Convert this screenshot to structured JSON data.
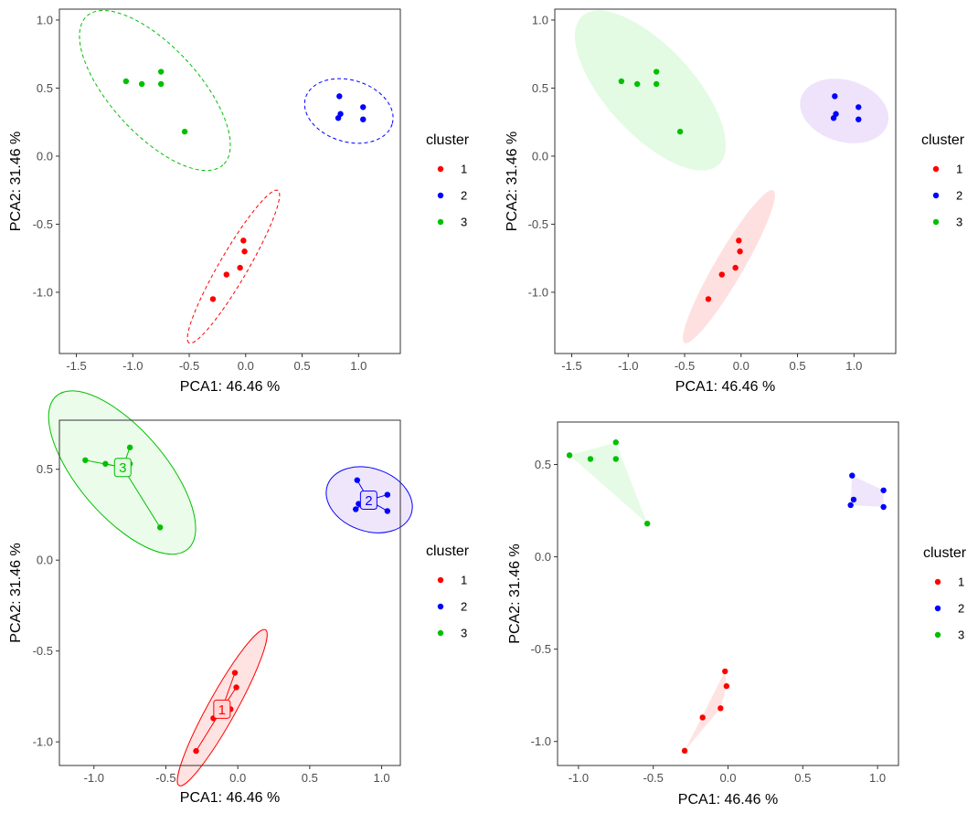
{
  "chart_data": [
    {
      "type": "scatter",
      "style": "dashed-ellipse",
      "xlabel": "PCA1: 46.46 %",
      "ylabel": "PCA2: 31.46 %",
      "xlim": [
        -1.65,
        1.37
      ],
      "ylim": [
        -1.45,
        1.08
      ],
      "xticks": [
        -1.5,
        -1.0,
        -0.5,
        0.0,
        0.5,
        1.0
      ],
      "xtick_labels": [
        "-1.5",
        "-1.0",
        "-0.5",
        "0.0",
        "0.5",
        "1.0"
      ],
      "yticks": [
        -1.0,
        -0.5,
        0.0,
        0.5,
        1.0
      ],
      "ytick_labels": [
        "-1.0",
        "-0.5",
        "0.0",
        "0.5",
        "1.0"
      ],
      "legend_title": "cluster",
      "series": [
        {
          "name": "1",
          "color": "#ff0000",
          "points": [
            [
              -0.02,
              -0.62
            ],
            [
              -0.01,
              -0.7
            ],
            [
              -0.05,
              -0.82
            ],
            [
              -0.17,
              -0.87
            ],
            [
              -0.29,
              -1.05
            ]
          ]
        },
        {
          "name": "2",
          "color": "#0000ff",
          "points": [
            [
              0.83,
              0.44
            ],
            [
              1.04,
              0.36
            ],
            [
              0.84,
              0.31
            ],
            [
              0.82,
              0.28
            ],
            [
              1.04,
              0.27
            ]
          ]
        },
        {
          "name": "3",
          "color": "#00c000",
          "points": [
            [
              -0.75,
              0.62
            ],
            [
              -1.06,
              0.55
            ],
            [
              -0.92,
              0.53
            ],
            [
              -0.75,
              0.53
            ],
            [
              -0.54,
              0.18
            ]
          ]
        }
      ]
    },
    {
      "type": "scatter",
      "style": "filled-ellipse",
      "xlabel": "PCA1: 46.46 %",
      "ylabel": "PCA2: 31.46 %",
      "xlim": [
        -1.65,
        1.37
      ],
      "ylim": [
        -1.45,
        1.08
      ],
      "xticks": [
        -1.5,
        -1.0,
        -0.5,
        0.0,
        0.5,
        1.0
      ],
      "xtick_labels": [
        "-1.5",
        "-1.0",
        "-0.5",
        "0.0",
        "0.5",
        "1.0"
      ],
      "yticks": [
        -1.0,
        -0.5,
        0.0,
        0.5,
        1.0
      ],
      "ytick_labels": [
        "-1.0",
        "-0.5",
        "0.0",
        "0.5",
        "1.0"
      ],
      "legend_title": "cluster",
      "series": [
        {
          "name": "1",
          "color": "#ff0000",
          "fill": "#ffe0e0",
          "points": [
            [
              -0.02,
              -0.62
            ],
            [
              -0.01,
              -0.7
            ],
            [
              -0.05,
              -0.82
            ],
            [
              -0.17,
              -0.87
            ],
            [
              -0.29,
              -1.05
            ]
          ]
        },
        {
          "name": "2",
          "color": "#0000ff",
          "fill": "#eee3fb",
          "points": [
            [
              0.83,
              0.44
            ],
            [
              1.04,
              0.36
            ],
            [
              0.84,
              0.31
            ],
            [
              0.82,
              0.28
            ],
            [
              1.04,
              0.27
            ]
          ]
        },
        {
          "name": "3",
          "color": "#00c000",
          "fill": "#e3fbe3",
          "points": [
            [
              -0.75,
              0.62
            ],
            [
              -1.06,
              0.55
            ],
            [
              -0.92,
              0.53
            ],
            [
              -0.75,
              0.53
            ],
            [
              -0.54,
              0.18
            ]
          ]
        }
      ]
    },
    {
      "type": "scatter",
      "style": "ellipse-star",
      "xlabel": "PCA1: 46.46 %",
      "ylabel": "PCA2: 31.46 %",
      "xlim": [
        -1.24,
        1.13
      ],
      "ylim": [
        -1.13,
        0.77
      ],
      "xticks": [
        -1.0,
        -0.5,
        0.0,
        0.5,
        1.0
      ],
      "xtick_labels": [
        "-1.0",
        "-0.5",
        "0.0",
        "0.5",
        "1.0"
      ],
      "yticks": [
        -1.0,
        -0.5,
        0.0,
        0.5
      ],
      "ytick_labels": [
        "-1.0",
        "-0.5",
        "0.0",
        "0.5"
      ],
      "legend_title": "cluster",
      "series": [
        {
          "name": "1",
          "color": "#ff0000",
          "fill": "#ffd6d6",
          "center": [
            -0.11,
            -0.82
          ],
          "points": [
            [
              -0.02,
              -0.62
            ],
            [
              -0.01,
              -0.7
            ],
            [
              -0.05,
              -0.82
            ],
            [
              -0.17,
              -0.87
            ],
            [
              -0.29,
              -1.05
            ]
          ]
        },
        {
          "name": "2",
          "color": "#0000ff",
          "fill": "#e8dcfb",
          "center": [
            0.91,
            0.33
          ],
          "points": [
            [
              0.83,
              0.44
            ],
            [
              1.04,
              0.36
            ],
            [
              0.84,
              0.31
            ],
            [
              0.82,
              0.28
            ],
            [
              1.04,
              0.27
            ]
          ]
        },
        {
          "name": "3",
          "color": "#00c000",
          "fill": "#e3fbe3",
          "center": [
            -0.8,
            0.51
          ],
          "points": [
            [
              -0.75,
              0.62
            ],
            [
              -1.06,
              0.55
            ],
            [
              -0.92,
              0.53
            ],
            [
              -0.75,
              0.53
            ],
            [
              -0.54,
              0.18
            ]
          ]
        }
      ]
    },
    {
      "type": "scatter",
      "style": "convex-hull",
      "xlabel": "PCA1: 46.46 %",
      "ylabel": "PCA2: 31.46 %",
      "xlim": [
        -1.14,
        1.14
      ],
      "ylim": [
        -1.13,
        0.73
      ],
      "xticks": [
        -1.0,
        -0.5,
        0.0,
        0.5,
        1.0
      ],
      "xtick_labels": [
        "-1.0",
        "-0.5",
        "0.0",
        "0.5",
        "1.0"
      ],
      "yticks": [
        -1.0,
        -0.5,
        0.0,
        0.5
      ],
      "ytick_labels": [
        "-1.0",
        "-0.5",
        "0.0",
        "0.5"
      ],
      "legend_title": "cluster",
      "series": [
        {
          "name": "1",
          "color": "#ff0000",
          "fill": "#ffe0e0",
          "points": [
            [
              -0.02,
              -0.62
            ],
            [
              -0.01,
              -0.7
            ],
            [
              -0.05,
              -0.82
            ],
            [
              -0.17,
              -0.87
            ],
            [
              -0.29,
              -1.05
            ]
          ]
        },
        {
          "name": "2",
          "color": "#0000ff",
          "fill": "#eee3fb",
          "points": [
            [
              0.83,
              0.44
            ],
            [
              1.04,
              0.36
            ],
            [
              0.84,
              0.31
            ],
            [
              0.82,
              0.28
            ],
            [
              1.04,
              0.27
            ]
          ]
        },
        {
          "name": "3",
          "color": "#00c000",
          "fill": "#e3fbe3",
          "points": [
            [
              -0.75,
              0.62
            ],
            [
              -1.06,
              0.55
            ],
            [
              -0.92,
              0.53
            ],
            [
              -0.75,
              0.53
            ],
            [
              -0.54,
              0.18
            ]
          ]
        }
      ]
    }
  ]
}
